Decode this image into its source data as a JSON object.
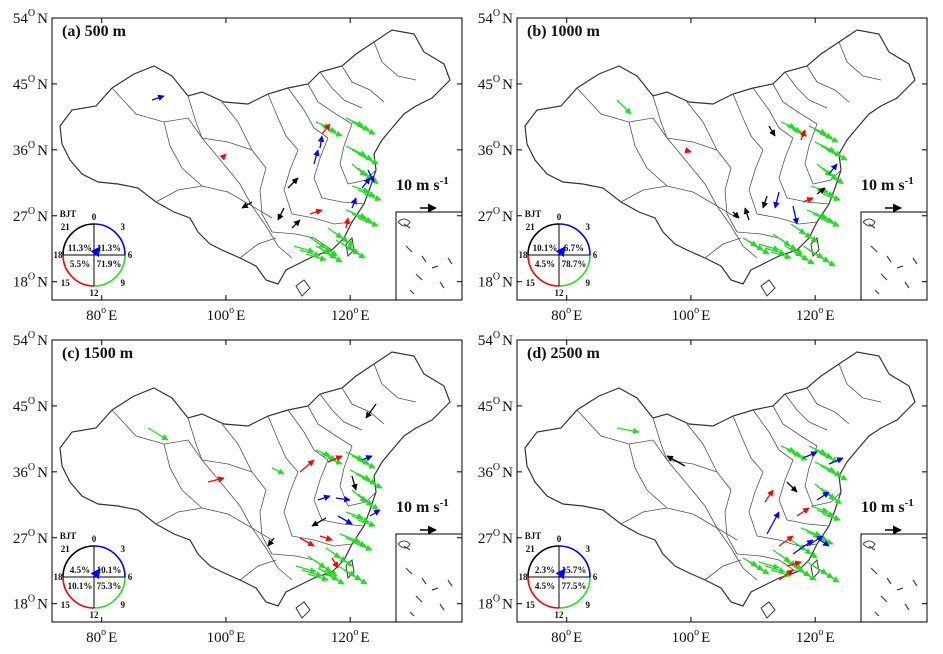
{
  "figure": {
    "x_ticks": [
      {
        "deg": "80",
        "sup": "o",
        "hemi": "E"
      },
      {
        "deg": "100",
        "sup": "o",
        "hemi": "E"
      },
      {
        "deg": "120",
        "sup": "o",
        "hemi": "E"
      }
    ],
    "y_ticks": [
      {
        "deg": "54",
        "sup": "O",
        "hemi": "N"
      },
      {
        "deg": "45",
        "sup": "O",
        "hemi": "N"
      },
      {
        "deg": "36",
        "sup": "O",
        "hemi": "N"
      },
      {
        "deg": "27",
        "sup": "O",
        "hemi": "N"
      },
      {
        "deg": "18",
        "sup": "O",
        "hemi": "N"
      }
    ],
    "scale_label": "10 m s",
    "scale_exp": "-1",
    "clock": {
      "title": "BJT",
      "hours": [
        "0",
        "3",
        "6",
        "9",
        "12",
        "15",
        "18",
        "21"
      ]
    },
    "colors": {
      "q00_06": "#0000ff",
      "q06_12": "#22dd22",
      "q12_18": "#ff0000",
      "q18_24": "#000000"
    },
    "panels": [
      {
        "id": "a",
        "title": "(a)  500 m",
        "percent": {
          "q18_24": "11.3%",
          "q00_06": "11.3%",
          "q12_18": "5.5%",
          "q06_12": "71.9%"
        }
      },
      {
        "id": "b",
        "title": "(b) 1000 m",
        "percent": {
          "q18_24": "10.1%",
          "q00_06": "6.7%",
          "q12_18": "4.5%",
          "q06_12": "78.7%"
        }
      },
      {
        "id": "c",
        "title": "(c) 1500 m",
        "percent": {
          "q18_24": "4.5%",
          "q00_06": "10.1%",
          "q12_18": "10.1%",
          "q06_12": "75.3%"
        }
      },
      {
        "id": "d",
        "title": "(d) 2500 m",
        "percent": {
          "q18_24": "2.3%",
          "q00_06": "15.7%",
          "q12_18": "4.5%",
          "q06_12": "77.5%"
        }
      }
    ]
  }
}
